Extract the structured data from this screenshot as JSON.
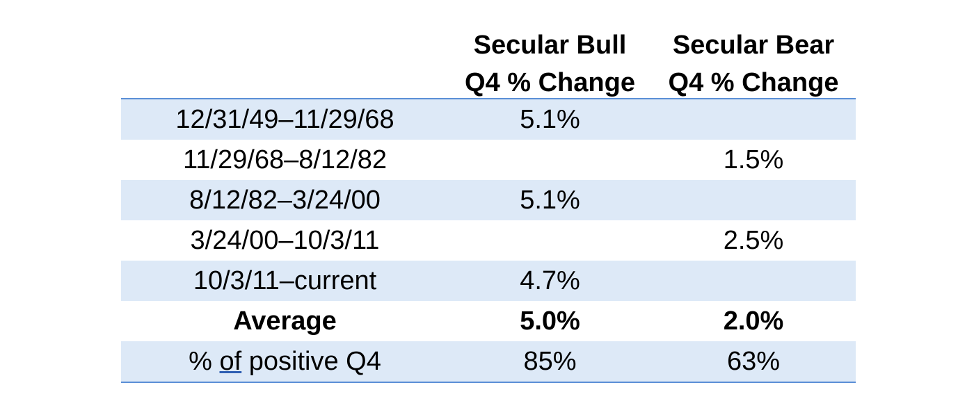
{
  "header": {
    "col0": "",
    "col1_line1": "Secular Bull",
    "col1_line2": "Q4 % Change",
    "col2_line1": "Secular Bear",
    "col2_line2": "Q4 % Change"
  },
  "rows": [
    {
      "period": "12/31/49–11/29/68",
      "bull": "5.1%",
      "bear": ""
    },
    {
      "period": "11/29/68–8/12/82",
      "bull": "",
      "bear": "1.5%"
    },
    {
      "period": "8/12/82–3/24/00",
      "bull": "5.1%",
      "bear": ""
    },
    {
      "period": "3/24/00–10/3/11",
      "bull": "",
      "bear": "2.5%"
    },
    {
      "period": "10/3/11–current",
      "bull": "4.7%",
      "bear": ""
    }
  ],
  "average": {
    "label": "Average",
    "bull": "5.0%",
    "bear": "2.0%"
  },
  "positive": {
    "label_pre": "% ",
    "label_of": "of",
    "label_post": " positive Q4",
    "bull": "85%",
    "bear": "63%"
  },
  "colors": {
    "row_shade": "#dde9f7",
    "rule": "#5b8fd6"
  }
}
